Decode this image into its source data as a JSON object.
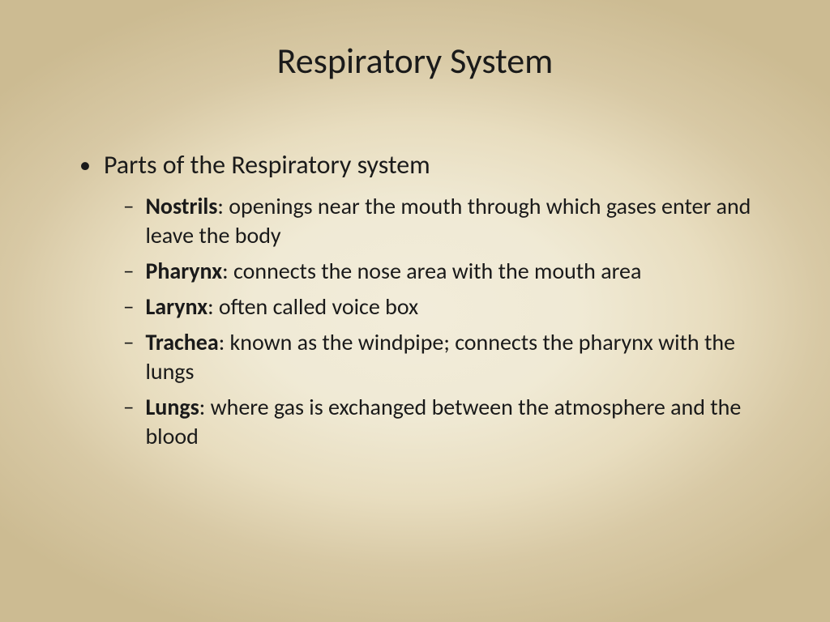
{
  "slide": {
    "title": "Respiratory System",
    "main_bullet": "Parts of the Respiratory system",
    "items": [
      {
        "term": "Nostrils",
        "definition": ": openings near the mouth through which gases enter and leave the body"
      },
      {
        "term": "Pharynx",
        "definition": ": connects the nose area with the mouth area"
      },
      {
        "term": "Larynx",
        "definition": ": often called voice box"
      },
      {
        "term": "Trachea",
        "definition": ": known as the windpipe; connects the pharynx with the lungs"
      },
      {
        "term": "Lungs",
        "definition": ": where gas is exchanged between the atmosphere and the blood"
      }
    ]
  },
  "style": {
    "background_gradient_inner": "#f2ecda",
    "background_gradient_outer": "#ccbb92",
    "text_color": "#1a1a1a",
    "title_fontsize": 44,
    "main_bullet_fontsize": 32,
    "sub_bullet_fontsize": 28,
    "font_family": "Calibri"
  }
}
